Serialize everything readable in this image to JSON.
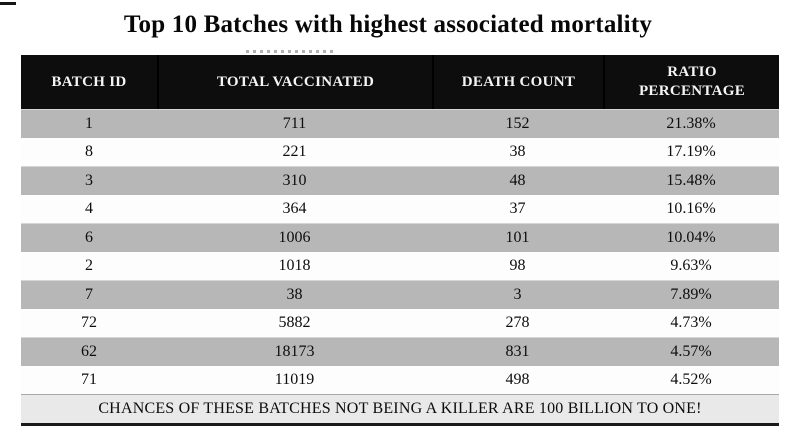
{
  "page": {
    "title": "Top 10 Batches with highest associated mortality"
  },
  "colors": {
    "header_bg": "#0d0d0d",
    "header_text": "#f5f5f5",
    "row_gray": "#b7b7b7",
    "row_white": "#fdfdfd",
    "footer_bg": "#e9e9e9",
    "border": "#1a1a1a"
  },
  "table": {
    "columns": [
      "BATCH ID",
      "TOTAL VACCINATED",
      "DEATH COUNT",
      "RATIO PERCENTAGE"
    ],
    "rows": [
      [
        "1",
        "711",
        "152",
        "21.38%"
      ],
      [
        "8",
        "221",
        "38",
        "17.19%"
      ],
      [
        "3",
        "310",
        "48",
        "15.48%"
      ],
      [
        "4",
        "364",
        "37",
        "10.16%"
      ],
      [
        "6",
        "1006",
        "101",
        "10.04%"
      ],
      [
        "2",
        "1018",
        "98",
        "9.63%"
      ],
      [
        "7",
        "38",
        "3",
        "7.89%"
      ],
      [
        "72",
        "5882",
        "278",
        "4.73%"
      ],
      [
        "62",
        "18173",
        "831",
        "4.57%"
      ],
      [
        "71",
        "11019",
        "498",
        "4.52%"
      ]
    ],
    "footer": "CHANCES OF THESE BATCHES NOT BEING A KILLER ARE 100 BILLION TO ONE!"
  },
  "chart_data": {
    "type": "table",
    "title": "Top 10 Batches with highest associated mortality",
    "columns": [
      "BATCH ID",
      "TOTAL VACCINATED",
      "DEATH COUNT",
      "RATIO PERCENTAGE"
    ],
    "rows": [
      {
        "batch_id": 1,
        "total_vaccinated": 711,
        "death_count": 152,
        "ratio_percentage": "21.38%"
      },
      {
        "batch_id": 8,
        "total_vaccinated": 221,
        "death_count": 38,
        "ratio_percentage": "17.19%"
      },
      {
        "batch_id": 3,
        "total_vaccinated": 310,
        "death_count": 48,
        "ratio_percentage": "15.48%"
      },
      {
        "batch_id": 4,
        "total_vaccinated": 364,
        "death_count": 37,
        "ratio_percentage": "10.16%"
      },
      {
        "batch_id": 6,
        "total_vaccinated": 1006,
        "death_count": 101,
        "ratio_percentage": "10.04%"
      },
      {
        "batch_id": 2,
        "total_vaccinated": 1018,
        "death_count": 98,
        "ratio_percentage": "9.63%"
      },
      {
        "batch_id": 7,
        "total_vaccinated": 38,
        "death_count": 3,
        "ratio_percentage": "7.89%"
      },
      {
        "batch_id": 72,
        "total_vaccinated": 5882,
        "death_count": 278,
        "ratio_percentage": "4.73%"
      },
      {
        "batch_id": 62,
        "total_vaccinated": 18173,
        "death_count": 831,
        "ratio_percentage": "4.57%"
      },
      {
        "batch_id": 71,
        "total_vaccinated": 11019,
        "death_count": 498,
        "ratio_percentage": "4.52%"
      }
    ],
    "footer_note": "CHANCES OF THESE BATCHES NOT BEING A KILLER ARE 100 BILLION TO ONE!",
    "layout": {
      "row_striping": "alternating gray/white starting gray",
      "header_style": "black background, white bold text",
      "grid": "off"
    }
  }
}
